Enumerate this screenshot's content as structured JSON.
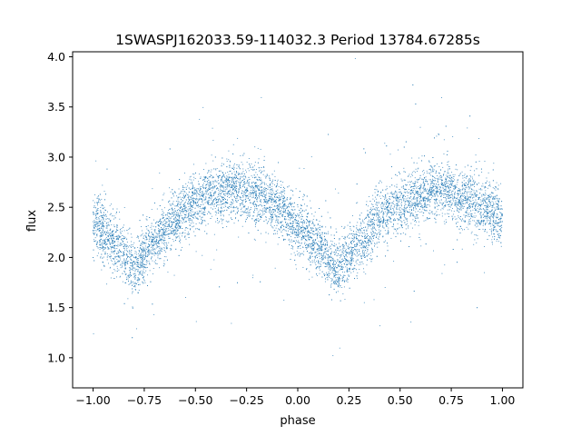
{
  "chart_data": {
    "type": "scatter",
    "title": "1SWASPJ162033.59-114032.3 Period 13784.67285s",
    "xlabel": "phase",
    "ylabel": "flux",
    "xlim": [
      -1.1,
      1.1
    ],
    "ylim": [
      0.7,
      4.05
    ],
    "x_ticks": [
      -1.0,
      -0.75,
      -0.5,
      -0.25,
      0.0,
      0.25,
      0.5,
      0.75,
      1.0
    ],
    "x_tick_labels": [
      "−1.00",
      "−0.75",
      "−0.50",
      "−0.25",
      "0.00",
      "0.25",
      "0.50",
      "0.75",
      "1.00"
    ],
    "y_ticks": [
      1.0,
      1.5,
      2.0,
      2.5,
      3.0,
      3.5,
      4.0
    ],
    "y_tick_labels": [
      "1.0",
      "1.5",
      "2.0",
      "2.5",
      "3.0",
      "3.5",
      "4.0"
    ],
    "grid": false,
    "marker_color": "#1f77b4",
    "series_shape": {
      "phase_range": [
        -1.0,
        1.0
      ],
      "curve_knots": [
        [
          -1.0,
          2.35
        ],
        [
          -0.9,
          2.15
        ],
        [
          -0.8,
          1.92
        ],
        [
          -0.7,
          2.15
        ],
        [
          -0.6,
          2.4
        ],
        [
          -0.5,
          2.55
        ],
        [
          -0.4,
          2.65
        ],
        [
          -0.3,
          2.68
        ],
        [
          -0.2,
          2.62
        ],
        [
          -0.1,
          2.5
        ],
        [
          0.0,
          2.32
        ],
        [
          0.1,
          2.1
        ],
        [
          0.2,
          1.9
        ],
        [
          0.3,
          2.15
        ],
        [
          0.4,
          2.4
        ],
        [
          0.5,
          2.52
        ],
        [
          0.6,
          2.62
        ],
        [
          0.7,
          2.68
        ],
        [
          0.8,
          2.6
        ],
        [
          0.9,
          2.5
        ],
        [
          1.0,
          2.4
        ]
      ],
      "scatter_spread": 0.14,
      "point_count": 9000
    }
  }
}
